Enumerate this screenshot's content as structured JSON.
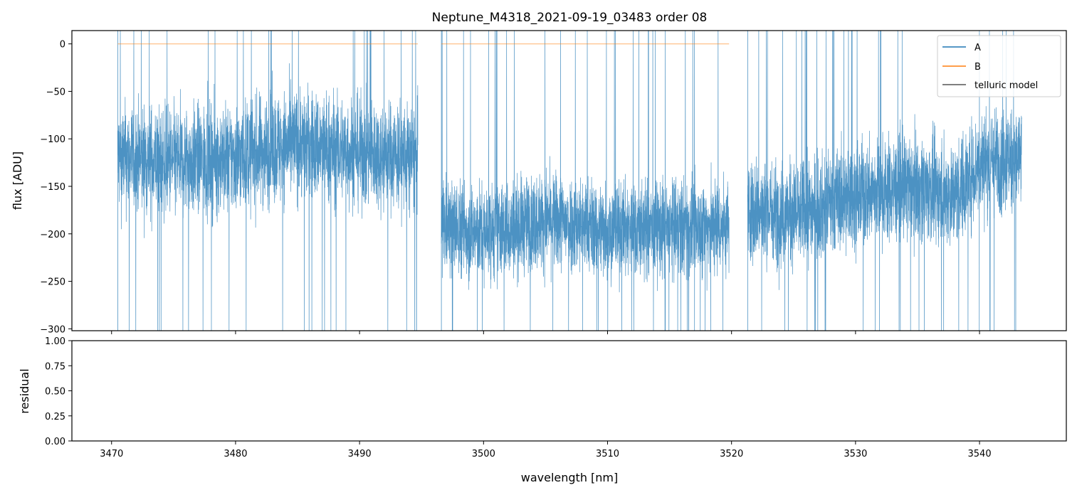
{
  "chart_data": [
    {
      "type": "line",
      "title": "Neptune_M4318_2021-09-19_03483  order 08",
      "xlabel": "",
      "ylabel": "flux [ADU]",
      "xlim": [
        3466.8,
        3547.0
      ],
      "ylim": [
        -302,
        14
      ],
      "yticks": [
        0,
        -50,
        -100,
        -150,
        -200,
        -250,
        -300
      ],
      "ytick_labels": [
        "0",
        "−50",
        "−100",
        "−150",
        "−200",
        "−250",
        "−300"
      ],
      "xticks": [
        3470,
        3480,
        3490,
        3500,
        3510,
        3520,
        3530,
        3540
      ],
      "legend": {
        "placement": "top-right",
        "entries": [
          {
            "label": "A",
            "color": "#1f77b4"
          },
          {
            "label": "B",
            "color": "#ff7f0e"
          },
          {
            "label": "telluric model",
            "color": "#555555"
          }
        ]
      },
      "series": [
        {
          "name": "A",
          "color": "#1f77b4",
          "segments": [
            {
              "x_start": 3470.5,
              "x_end": 3494.7,
              "mean_profile": [
                [
                  3470.5,
                  -120
                ],
                [
                  3475,
                  -125
                ],
                [
                  3480,
                  -120
                ],
                [
                  3485,
                  -105
                ],
                [
                  3490,
                  -115
                ],
                [
                  3494.7,
                  -120
                ]
              ],
              "noise": 48
            },
            {
              "x_start": 3496.6,
              "x_end": 3519.8,
              "mean_profile": [
                [
                  3496.6,
                  -190
                ],
                [
                  3500,
                  -200
                ],
                [
                  3505,
                  -185
                ],
                [
                  3510,
                  -195
                ],
                [
                  3515,
                  -195
                ],
                [
                  3519.8,
                  -190
                ]
              ],
              "noise": 42
            },
            {
              "x_start": 3521.3,
              "x_end": 3543.4,
              "mean_profile": [
                [
                  3521.3,
                  -175
                ],
                [
                  3525,
                  -180
                ],
                [
                  3530,
                  -160
                ],
                [
                  3535,
                  -150
                ],
                [
                  3538,
                  -160
                ],
                [
                  3540,
                  -125
                ],
                [
                  3543.4,
                  -120
                ]
              ],
              "noise": 45
            }
          ]
        },
        {
          "name": "B",
          "color": "#ff7f0e",
          "segments": [
            {
              "x_start": 3470.5,
              "x_end": 3494.7,
              "value": 0
            },
            {
              "x_start": 3496.6,
              "x_end": 3519.8,
              "value": 0
            }
          ]
        },
        {
          "name": "telluric model",
          "color": "#555555",
          "segments": []
        }
      ]
    },
    {
      "type": "line",
      "title": "",
      "xlabel": "wavelength [nm]",
      "ylabel": "residual",
      "xlim": [
        3466.8,
        3547.0
      ],
      "ylim": [
        0,
        1
      ],
      "yticks": [
        0,
        0.25,
        0.5,
        0.75,
        1.0
      ],
      "ytick_labels": [
        "0.00",
        "0.25",
        "0.50",
        "0.75",
        "1.00"
      ],
      "xticks": [
        3470,
        3480,
        3490,
        3500,
        3510,
        3520,
        3530,
        3540
      ],
      "xtick_labels": [
        "3470",
        "3480",
        "3490",
        "3500",
        "3510",
        "3520",
        "3530",
        "3540"
      ],
      "series": []
    }
  ]
}
